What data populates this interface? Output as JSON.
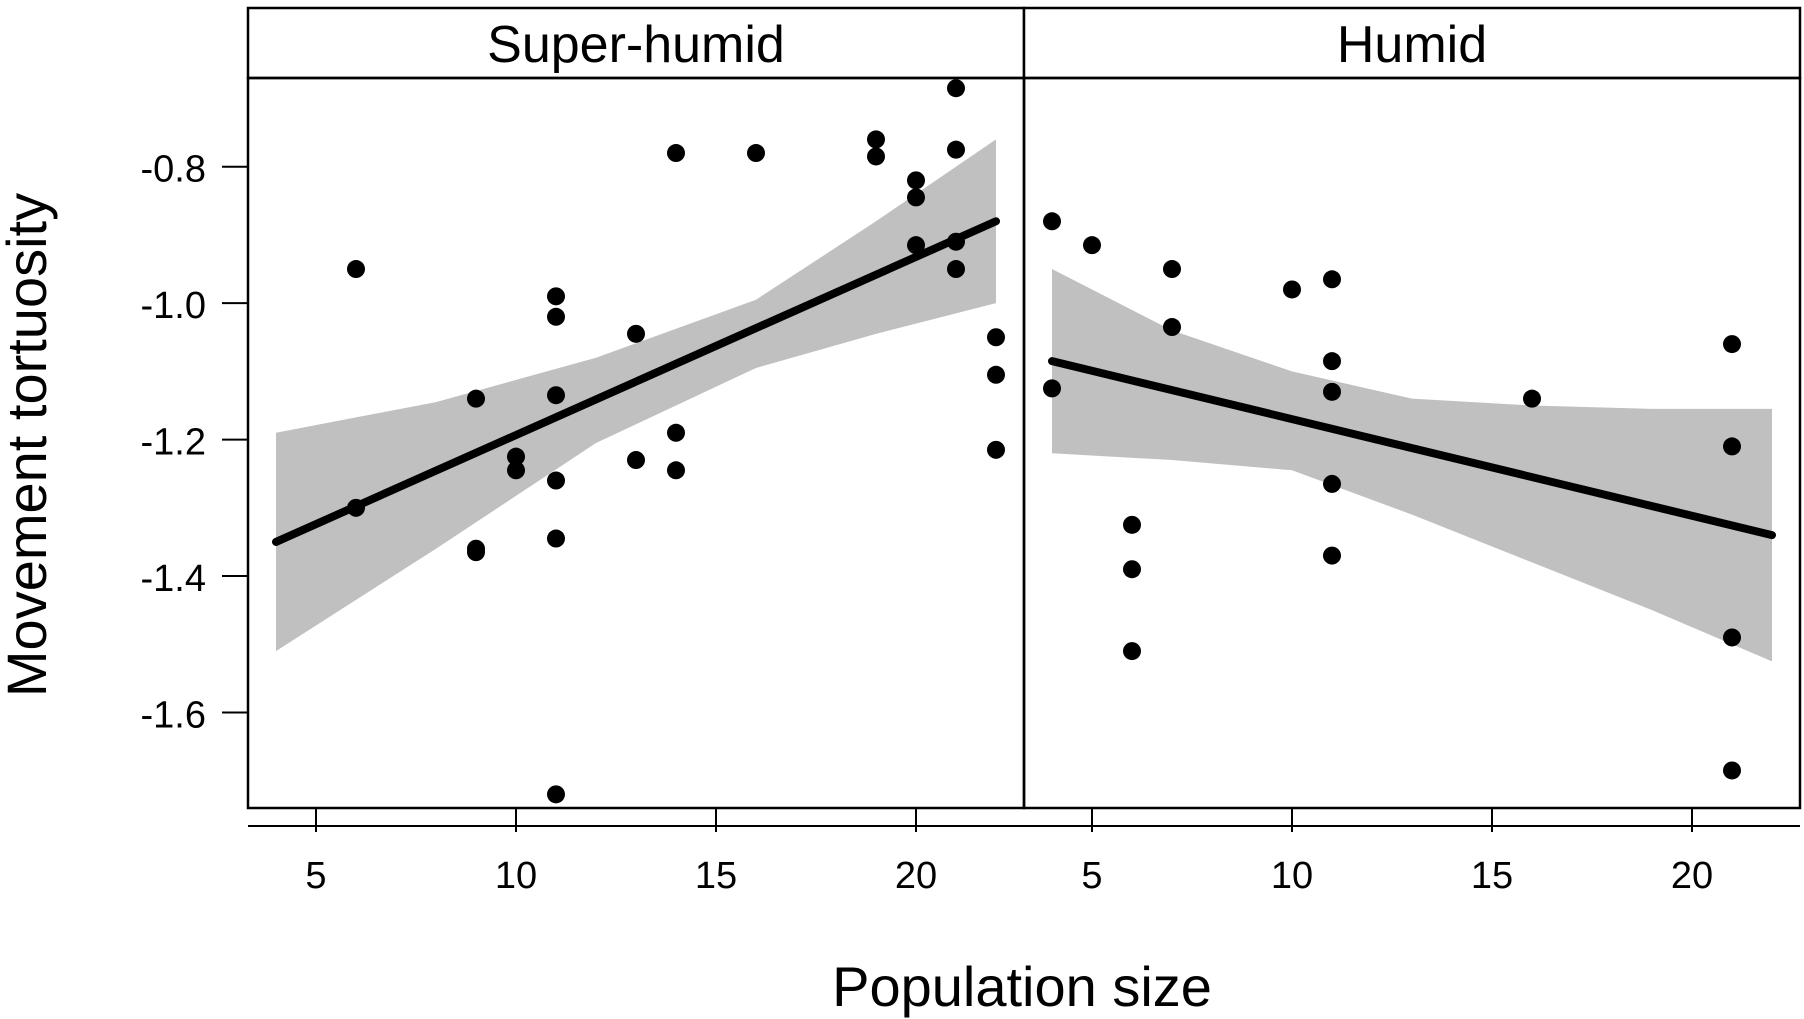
{
  "chart_data": {
    "type": "scatter",
    "xlabel": "Population size",
    "ylabel": "Movement tortuosity",
    "ylim": [
      -1.74,
      -0.67
    ],
    "yticks": [
      -1.6,
      -1.4,
      -1.2,
      -1.0,
      -0.8
    ],
    "ytick_labels": [
      "-1.6",
      "-1.4",
      "-1.2",
      "-1.0",
      "-0.8"
    ],
    "legend": "none",
    "grid": false,
    "panels": [
      {
        "title": "Super-humid",
        "xlim": [
          3.3,
          22.7
        ],
        "xticks": [
          5,
          10,
          15,
          20
        ],
        "xtick_labels": [
          "5",
          "10",
          "15",
          "20"
        ],
        "points": [
          {
            "x": 6,
            "y": -0.95
          },
          {
            "x": 6,
            "y": -1.3
          },
          {
            "x": 9,
            "y": -1.14
          },
          {
            "x": 9,
            "y": -1.36
          },
          {
            "x": 9,
            "y": -1.365
          },
          {
            "x": 10,
            "y": -1.225
          },
          {
            "x": 10,
            "y": -1.245
          },
          {
            "x": 11,
            "y": -0.99
          },
          {
            "x": 11,
            "y": -1.02
          },
          {
            "x": 11,
            "y": -1.135
          },
          {
            "x": 11,
            "y": -1.26
          },
          {
            "x": 11,
            "y": -1.345
          },
          {
            "x": 11,
            "y": -1.72
          },
          {
            "x": 13,
            "y": -1.045
          },
          {
            "x": 13,
            "y": -1.23
          },
          {
            "x": 14,
            "y": -0.78
          },
          {
            "x": 14,
            "y": -1.19
          },
          {
            "x": 14,
            "y": -1.245
          },
          {
            "x": 16,
            "y": -0.78
          },
          {
            "x": 19,
            "y": -0.76
          },
          {
            "x": 19,
            "y": -0.785
          },
          {
            "x": 20,
            "y": -0.82
          },
          {
            "x": 20,
            "y": -0.845
          },
          {
            "x": 20,
            "y": -0.915
          },
          {
            "x": 21,
            "y": -0.685
          },
          {
            "x": 21,
            "y": -0.775
          },
          {
            "x": 21,
            "y": -0.91
          },
          {
            "x": 21,
            "y": -0.95
          },
          {
            "x": 22,
            "y": -1.05
          },
          {
            "x": 22,
            "y": -1.105
          },
          {
            "x": 22,
            "y": -1.215
          }
        ],
        "fit": {
          "x": [
            4,
            22
          ],
          "y": [
            -1.35,
            -0.88
          ]
        },
        "ci_band": {
          "x": [
            4,
            8,
            12,
            16,
            19,
            22
          ],
          "lower": [
            -1.51,
            -1.36,
            -1.205,
            -1.095,
            -1.045,
            -1.0
          ],
          "upper": [
            -1.19,
            -1.145,
            -1.08,
            -0.995,
            -0.88,
            -0.76
          ]
        }
      },
      {
        "title": "Humid",
        "xlim": [
          3.3,
          22.7
        ],
        "xticks": [
          5,
          10,
          15,
          20
        ],
        "xtick_labels": [
          "5",
          "10",
          "15",
          "20"
        ],
        "points": [
          {
            "x": 4,
            "y": -0.88
          },
          {
            "x": 4,
            "y": -1.125
          },
          {
            "x": 5,
            "y": -0.915
          },
          {
            "x": 6,
            "y": -1.325
          },
          {
            "x": 6,
            "y": -1.39
          },
          {
            "x": 6,
            "y": -1.51
          },
          {
            "x": 7,
            "y": -0.95
          },
          {
            "x": 7,
            "y": -1.035
          },
          {
            "x": 10,
            "y": -0.98
          },
          {
            "x": 11,
            "y": -0.965
          },
          {
            "x": 11,
            "y": -1.085
          },
          {
            "x": 11,
            "y": -1.13
          },
          {
            "x": 11,
            "y": -1.265
          },
          {
            "x": 11,
            "y": -1.37
          },
          {
            "x": 16,
            "y": -1.14
          },
          {
            "x": 21,
            "y": -1.06
          },
          {
            "x": 21,
            "y": -1.21
          },
          {
            "x": 21,
            "y": -1.49
          },
          {
            "x": 21,
            "y": -1.685
          }
        ],
        "fit": {
          "x": [
            4,
            22
          ],
          "y": [
            -1.085,
            -1.34
          ]
        },
        "ci_band": {
          "x": [
            4,
            7,
            10,
            13,
            16,
            19,
            22
          ],
          "lower": [
            -1.22,
            -1.23,
            -1.245,
            -1.31,
            -1.38,
            -1.45,
            -1.525
          ],
          "upper": [
            -0.95,
            -1.04,
            -1.1,
            -1.14,
            -1.15,
            -1.155,
            -1.155
          ]
        }
      }
    ]
  }
}
